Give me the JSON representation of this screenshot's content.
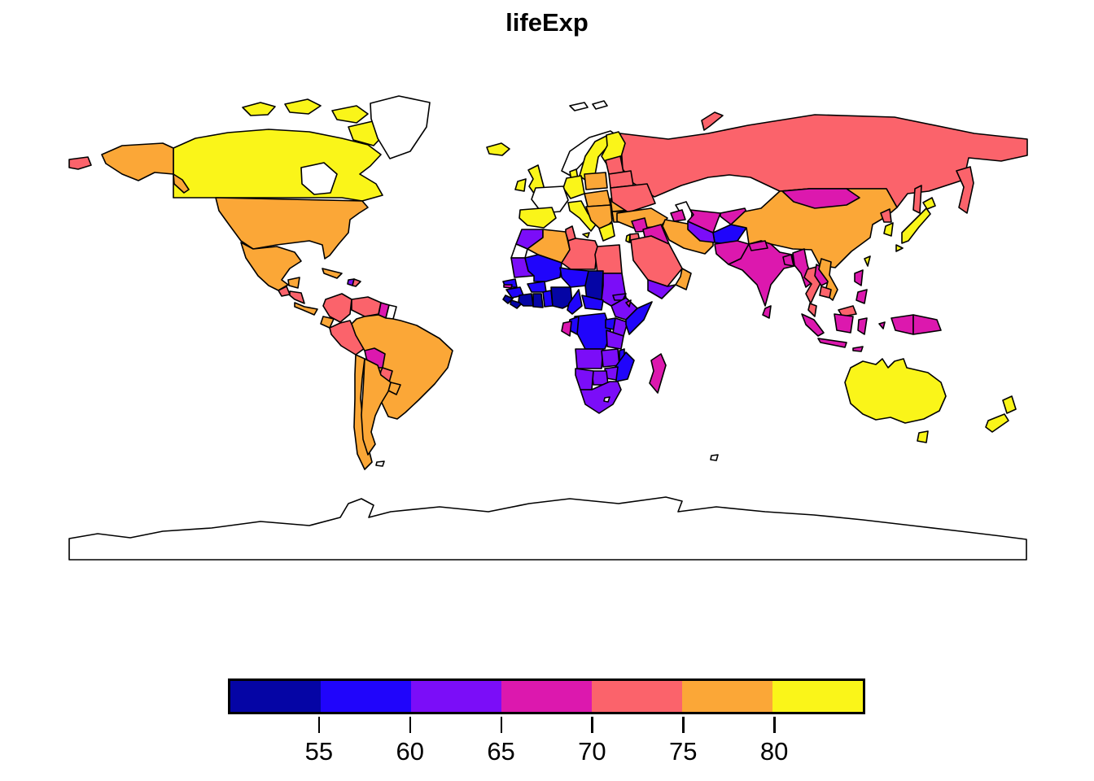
{
  "title": "lifeExp",
  "background_color": "#FFFFFF",
  "border_color": "#000000",
  "no_data_color": "#FFFFFF",
  "legend": {
    "orientation": "horizontal",
    "tick_labels": [
      "55",
      "60",
      "65",
      "70",
      "75",
      "80"
    ],
    "band_count": 7
  },
  "chart_data": {
    "type": "choropleth_map",
    "title": "lifeExp",
    "variable": "life expectancy (years)",
    "breaks": [
      50,
      55,
      60,
      65,
      70,
      75,
      80,
      85
    ],
    "bin_ranges": [
      "50-55",
      "55-60",
      "60-65",
      "65-70",
      "70-75",
      "75-80",
      "80-85"
    ],
    "palette": [
      "#0505A5",
      "#2005FB",
      "#7B0DF8",
      "#DC18AE",
      "#FB636B",
      "#FBA737",
      "#FAF519"
    ],
    "legend_position": "bottom",
    "projection": "equirectangular",
    "no_data_regions": [
      "greenland",
      "norway",
      "france",
      "western-sahara",
      "suriname",
      "caspian-sea",
      "antarctica",
      "svalbard",
      "lesotho",
      "falklands",
      "kerguelen",
      "hudson-bay"
    ],
    "regions": {
      "chukotka": 5,
      "russia": 5,
      "kamchatka": 5,
      "sakhalin": 5,
      "novaya-zemlya": 5,
      "svalbard": 0,
      "canada": 7,
      "hudson-bay": 0,
      "baffin": 7,
      "arctic1": 7,
      "arctic2": 7,
      "arctic3": 7,
      "greenland": 0,
      "alaska": 6,
      "usa": 6,
      "mexico": 6,
      "guatemala": 5,
      "honduras-nicaragua": 5,
      "costa-panama": 6,
      "cuba": 6,
      "haiti": 3,
      "dominican": 5,
      "colombia": 5,
      "venezuela": 5,
      "guyana": 4,
      "suriname": 0,
      "ecuador": 6,
      "peru": 5,
      "brazil": 6,
      "bolivia": 4,
      "paraguay": 5,
      "uruguay": 6,
      "chile": 6,
      "argentina": 6,
      "falklands": 0,
      "iceland": 7,
      "uk": 7,
      "ireland": 7,
      "norway": 0,
      "sweden": 7,
      "finland": 7,
      "denmark": 7,
      "germany": 7,
      "france": 0,
      "spain": 7,
      "italy": 7,
      "poland": 6,
      "central-europe": 6,
      "balkans": 6,
      "greece": 7,
      "romania": 6,
      "bulgaria": 6,
      "baltics": 5,
      "belarus": 5,
      "ukraine": 5,
      "turkey": 6,
      "caspian": 0,
      "syria": 4,
      "iraq": 4,
      "iran": 6,
      "afghanistan": 2,
      "turkmenistan": 3,
      "uzbekistan": 4,
      "kyrgyz-tajik": 4,
      "azerbaijan": 4,
      "israel": 7,
      "jordan": 5,
      "saudi": 5,
      "yemen": 3,
      "oman": 6,
      "pakistan": 4,
      "india": 4,
      "nepal": 4,
      "bangladesh": 4,
      "sri-lanka": 4,
      "mongolia": 4,
      "china": 6,
      "north-korea": 5,
      "south-korea": 7,
      "japan": 7,
      "taiwan": 7,
      "myanmar": 4,
      "thailand": 5,
      "laos": 4,
      "vietnam": 6,
      "cambodia": 5,
      "malaysia": 5,
      "borneo-malaysia": 5,
      "sumatra": 4,
      "java": 4,
      "borneo": 4,
      "sulawesi": 4,
      "lesser-sunda": 4,
      "moluccas": 4,
      "new-guinea-west": 4,
      "png": 4,
      "philippines": 4,
      "australia": 7,
      "tasmania": 7,
      "nz-north": 7,
      "nz-south": 7,
      "morocco": 3,
      "western-sahara": 0,
      "algeria": 6,
      "tunisia": 5,
      "libya": 5,
      "egypt": 5,
      "mauritania": 3,
      "mali": 2,
      "niger": 2,
      "chad": 1,
      "sudan": 3,
      "eritrea": 3,
      "senegal": 2,
      "gambia": 4,
      "guinea": 2,
      "sierra-leone": 1,
      "liberia": 1,
      "ivory-coast": 1,
      "ghana": 1,
      "burkina": 2,
      "togo-benin": 2,
      "nigeria": 1,
      "cameroon": 2,
      "car": 2,
      "drc": 2,
      "congo": 2,
      "gabon": 4,
      "uganda": 2,
      "kenya": 3,
      "somalia": 2,
      "ethiopia": 3,
      "djibouti": 4,
      "tanzania": 3,
      "angola": 3,
      "zambia": 3,
      "malawi": 2,
      "mozambique": 2,
      "zimbabwe": 3,
      "botswana": 3,
      "namibia": 3,
      "south-africa": 3,
      "lesotho": 0,
      "madagascar": 4,
      "antarctica": 0,
      "kerguelen": 0
    }
  }
}
